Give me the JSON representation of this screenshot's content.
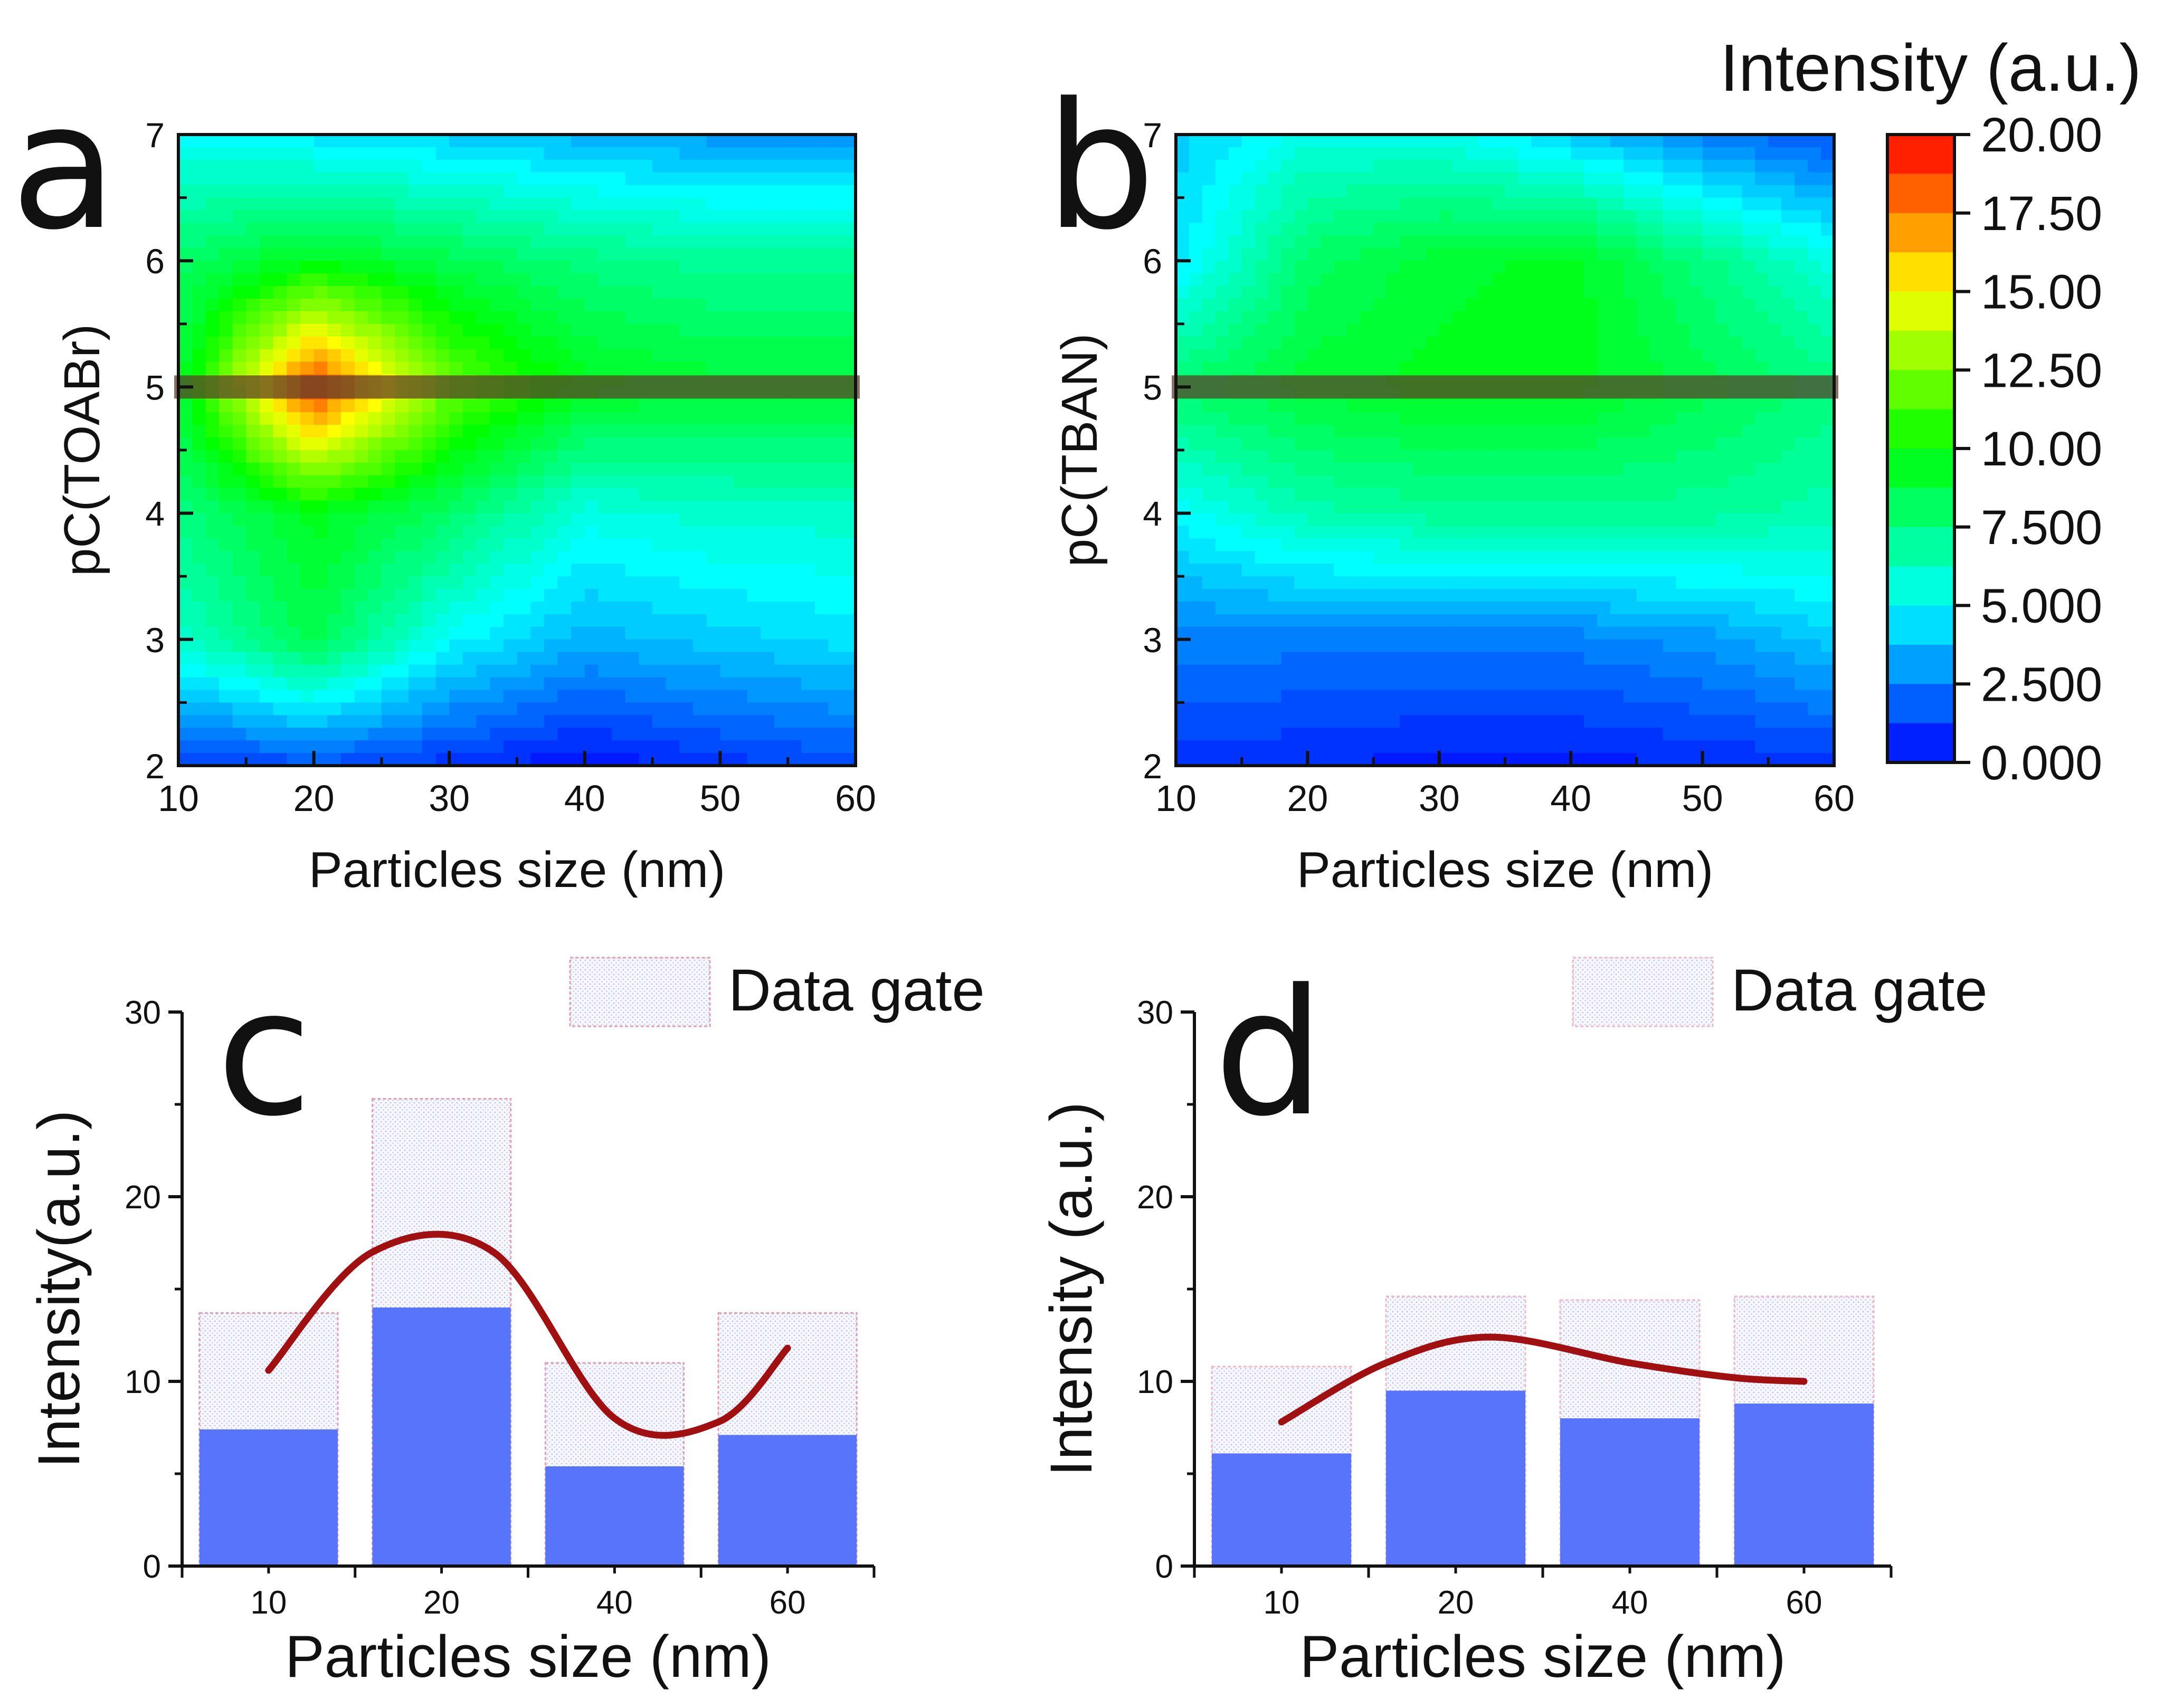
{
  "colorbar": {
    "title": "Intensity (a.u.)",
    "min": 0,
    "max": 20,
    "ticks": [
      "20.00",
      "17.50",
      "15.00",
      "12.50",
      "10.00",
      "7.500",
      "5.000",
      "2.500",
      "0.000"
    ],
    "tick_values": [
      20,
      17.5,
      15,
      12.5,
      10,
      7.5,
      5,
      2.5,
      0
    ],
    "colormap": [
      "#0000ff",
      "#0080ff",
      "#00ffff",
      "#00ff80",
      "#00ff00",
      "#80ff00",
      "#ffff00",
      "#ff8000",
      "#ff0000"
    ]
  },
  "chart_data": [
    {
      "panel": "a",
      "type": "heatmap",
      "xlabel": "Particles size (nm)",
      "ylabel": "pC(TOABr)",
      "xlim": [
        10,
        60
      ],
      "ylim": [
        2,
        7
      ],
      "x": [
        10,
        20,
        30,
        40,
        50,
        60
      ],
      "y": [
        2,
        3,
        4,
        5,
        6,
        7
      ],
      "x_ticks": [
        "10",
        "20",
        "30",
        "40",
        "50",
        "60"
      ],
      "y_ticks": [
        "2",
        "3",
        "4",
        "5",
        "6",
        "7"
      ],
      "z": [
        [
          1.0,
          1.5,
          1.0,
          0.3,
          1.0,
          1.5
        ],
        [
          6.0,
          8.5,
          5.0,
          3.5,
          4.0,
          4.5
        ],
        [
          7.5,
          9.5,
          8.0,
          5.5,
          6.0,
          6.0
        ],
        [
          9.0,
          19.0,
          12.0,
          9.5,
          9.0,
          9.0
        ],
        [
          8.0,
          9.5,
          8.5,
          7.5,
          7.0,
          7.0
        ],
        [
          5.0,
          4.5,
          4.0,
          3.5,
          3.0,
          3.0
        ]
      ],
      "highlight_row": 5
    },
    {
      "panel": "b",
      "type": "heatmap",
      "xlabel": "Particles size (nm)",
      "ylabel": "pC(TBAN)",
      "xlim": [
        10,
        60
      ],
      "ylim": [
        2,
        7
      ],
      "x": [
        10,
        20,
        30,
        40,
        50,
        60
      ],
      "y": [
        2,
        3,
        4,
        5,
        6,
        7
      ],
      "x_ticks": [
        "10",
        "20",
        "30",
        "40",
        "50",
        "60"
      ],
      "y_ticks": [
        "2",
        "3",
        "4",
        "5",
        "6",
        "7"
      ],
      "z": [
        [
          1.0,
          0.8,
          0.5,
          0.5,
          0.8,
          1.0
        ],
        [
          2.5,
          2.5,
          2.5,
          2.5,
          3.0,
          4.0
        ],
        [
          5.0,
          6.5,
          7.0,
          7.0,
          7.0,
          6.5
        ],
        [
          8.0,
          9.0,
          9.5,
          9.5,
          8.5,
          7.5
        ],
        [
          4.5,
          8.0,
          9.0,
          9.5,
          7.5,
          5.5
        ],
        [
          4.0,
          5.5,
          5.5,
          4.0,
          2.5,
          1.5
        ]
      ],
      "highlight_row": 5
    },
    {
      "panel": "c",
      "type": "bar",
      "xlabel": "Particles size (nm)",
      "ylabel": "Intensity(a.u.)",
      "categories": [
        "10",
        "20",
        "40",
        "60"
      ],
      "ylim": [
        0,
        30
      ],
      "y_ticks": [
        "0",
        "10",
        "20",
        "30"
      ],
      "series": [
        {
          "name": "Data gate",
          "values": [
            13.7,
            25.3,
            11.0,
            13.7
          ]
        },
        {
          "name": "Intensity",
          "values": [
            7.4,
            14.0,
            5.4,
            7.1
          ]
        }
      ],
      "fit_curve": {
        "x_index": [
          0,
          0.6,
          1.3,
          2.0,
          2.6,
          3.0
        ],
        "values": [
          10.6,
          17.0,
          17.0,
          8.0,
          7.8,
          11.8
        ]
      },
      "legend": "Data gate"
    },
    {
      "panel": "d",
      "type": "bar",
      "xlabel": "Particles size (nm)",
      "ylabel": "Intensity (a.u.)",
      "categories": [
        "10",
        "20",
        "40",
        "60"
      ],
      "ylim": [
        0,
        30
      ],
      "y_ticks": [
        "0",
        "10",
        "20",
        "30"
      ],
      "series": [
        {
          "name": "Data gate",
          "values": [
            10.8,
            14.6,
            14.4,
            14.6
          ]
        },
        {
          "name": "Intensity",
          "values": [
            6.1,
            9.5,
            8.0,
            8.8
          ]
        }
      ],
      "fit_curve": {
        "x_index": [
          0,
          0.6,
          1.2,
          2.0,
          2.6,
          3.0
        ],
        "values": [
          7.8,
          11.0,
          12.4,
          11.0,
          10.2,
          10.0
        ]
      },
      "legend": "Data gate"
    }
  ]
}
